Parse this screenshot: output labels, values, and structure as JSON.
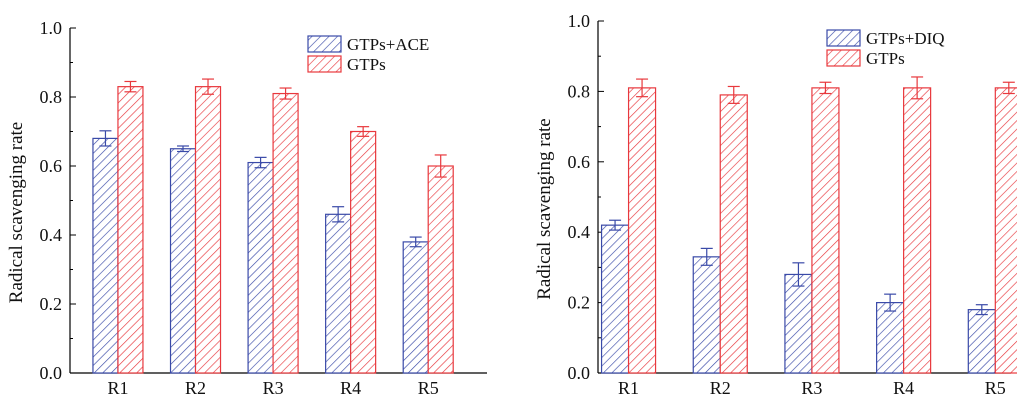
{
  "chart_data": [
    {
      "type": "bar",
      "categories": [
        "R1",
        "R2",
        "R3",
        "R4",
        "R5"
      ],
      "ylabel": "Radical scavenging rate",
      "xlabel": "",
      "ylim": [
        0.0,
        1.0
      ],
      "yticks": [
        "0.0",
        "0.2",
        "0.4",
        "0.6",
        "0.8",
        "1.0"
      ],
      "legend_position": "top-right",
      "series": [
        {
          "name": "GTPs+ACE",
          "color": "#3a4aa8",
          "values": [
            0.68,
            0.65,
            0.61,
            0.46,
            0.38
          ],
          "errors": [
            0.022,
            0.008,
            0.015,
            0.022,
            0.014
          ]
        },
        {
          "name": "GTPs",
          "color": "#e8383d",
          "values": [
            0.83,
            0.83,
            0.81,
            0.7,
            0.6
          ],
          "errors": [
            0.015,
            0.022,
            0.016,
            0.014,
            0.032
          ]
        }
      ]
    },
    {
      "type": "bar",
      "categories": [
        "R1",
        "R2",
        "R3",
        "R4",
        "R5"
      ],
      "ylabel": "Radical scavenging rate",
      "xlabel": "",
      "ylim": [
        0.0,
        1.0
      ],
      "yticks": [
        "0.0",
        "0.2",
        "0.4",
        "0.6",
        "0.8",
        "1.0"
      ],
      "legend_position": "top-right",
      "series": [
        {
          "name": "GTPs+DIQ",
          "color": "#3a4aa8",
          "values": [
            0.42,
            0.33,
            0.28,
            0.2,
            0.18
          ],
          "errors": [
            0.014,
            0.024,
            0.033,
            0.024,
            0.014
          ]
        },
        {
          "name": "GTPs",
          "color": "#e8383d",
          "values": [
            0.81,
            0.79,
            0.81,
            0.81,
            0.81
          ],
          "errors": [
            0.025,
            0.024,
            0.016,
            0.031,
            0.016
          ]
        }
      ]
    }
  ]
}
